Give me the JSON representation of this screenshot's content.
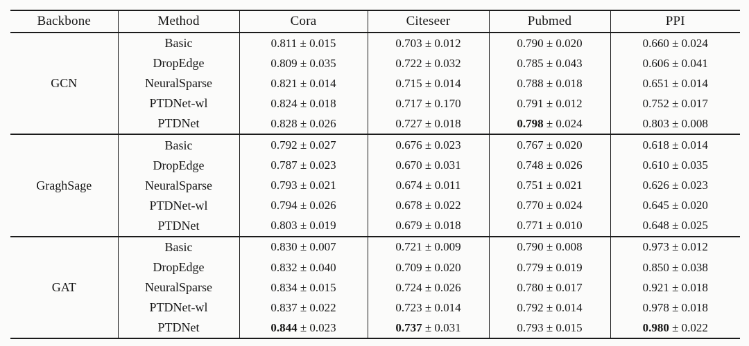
{
  "table": {
    "pm_symbol": "±",
    "columns": [
      "Backbone",
      "Method",
      "Cora",
      "Citeseer",
      "Pubmed",
      "PPI"
    ],
    "groups": [
      {
        "backbone": "GCN",
        "rows": [
          {
            "method": "Basic",
            "cells": [
              {
                "mean": "0.811",
                "std": "0.015",
                "bold": false
              },
              {
                "mean": "0.703",
                "std": "0.012",
                "bold": false
              },
              {
                "mean": "0.790",
                "std": "0.020",
                "bold": false
              },
              {
                "mean": "0.660",
                "std": "0.024",
                "bold": false
              }
            ]
          },
          {
            "method": "DropEdge",
            "cells": [
              {
                "mean": "0.809",
                "std": "0.035",
                "bold": false
              },
              {
                "mean": "0.722",
                "std": "0.032",
                "bold": false
              },
              {
                "mean": "0.785",
                "std": "0.043",
                "bold": false
              },
              {
                "mean": "0.606",
                "std": "0.041",
                "bold": false
              }
            ]
          },
          {
            "method": "NeuralSparse",
            "cells": [
              {
                "mean": "0.821",
                "std": "0.014",
                "bold": false
              },
              {
                "mean": "0.715",
                "std": "0.014",
                "bold": false
              },
              {
                "mean": "0.788",
                "std": "0.018",
                "bold": false
              },
              {
                "mean": "0.651",
                "std": "0.014",
                "bold": false
              }
            ]
          },
          {
            "method": "PTDNet-wl",
            "cells": [
              {
                "mean": "0.824",
                "std": "0.018",
                "bold": false
              },
              {
                "mean": "0.717",
                "std": "0.170",
                "bold": false
              },
              {
                "mean": "0.791",
                "std": "0.012",
                "bold": false
              },
              {
                "mean": "0.752",
                "std": "0.017",
                "bold": false
              }
            ]
          },
          {
            "method": "PTDNet",
            "cells": [
              {
                "mean": "0.828",
                "std": "0.026",
                "bold": false
              },
              {
                "mean": "0.727",
                "std": "0.018",
                "bold": false
              },
              {
                "mean": "0.798",
                "std": "0.024",
                "bold": true
              },
              {
                "mean": "0.803",
                "std": "0.008",
                "bold": false
              }
            ]
          }
        ]
      },
      {
        "backbone": "GraghSage",
        "rows": [
          {
            "method": "Basic",
            "cells": [
              {
                "mean": "0.792",
                "std": "0.027",
                "bold": false
              },
              {
                "mean": "0.676",
                "std": "0.023",
                "bold": false
              },
              {
                "mean": "0.767",
                "std": "0.020",
                "bold": false
              },
              {
                "mean": "0.618",
                "std": "0.014",
                "bold": false
              }
            ]
          },
          {
            "method": "DropEdge",
            "cells": [
              {
                "mean": "0.787",
                "std": "0.023",
                "bold": false
              },
              {
                "mean": "0.670",
                "std": "0.031",
                "bold": false
              },
              {
                "mean": "0.748",
                "std": "0.026",
                "bold": false
              },
              {
                "mean": "0.610",
                "std": "0.035",
                "bold": false
              }
            ]
          },
          {
            "method": "NeuralSparse",
            "cells": [
              {
                "mean": "0.793",
                "std": "0.021",
                "bold": false
              },
              {
                "mean": "0.674",
                "std": "0.011",
                "bold": false
              },
              {
                "mean": "0.751",
                "std": "0.021",
                "bold": false
              },
              {
                "mean": "0.626",
                "std": "0.023",
                "bold": false
              }
            ]
          },
          {
            "method": "PTDNet-wl",
            "cells": [
              {
                "mean": "0.794",
                "std": "0.026",
                "bold": false
              },
              {
                "mean": "0.678",
                "std": "0.022",
                "bold": false
              },
              {
                "mean": "0.770",
                "std": "0.024",
                "bold": false
              },
              {
                "mean": "0.645",
                "std": "0.020",
                "bold": false
              }
            ]
          },
          {
            "method": "PTDNet",
            "cells": [
              {
                "mean": "0.803",
                "std": "0.019",
                "bold": false
              },
              {
                "mean": "0.679",
                "std": "0.018",
                "bold": false
              },
              {
                "mean": "0.771",
                "std": "0.010",
                "bold": false
              },
              {
                "mean": "0.648",
                "std": "0.025",
                "bold": false
              }
            ]
          }
        ]
      },
      {
        "backbone": "GAT",
        "rows": [
          {
            "method": "Basic",
            "cells": [
              {
                "mean": "0.830",
                "std": "0.007",
                "bold": false
              },
              {
                "mean": "0.721",
                "std": "0.009",
                "bold": false
              },
              {
                "mean": "0.790",
                "std": "0.008",
                "bold": false
              },
              {
                "mean": "0.973",
                "std": "0.012",
                "bold": false
              }
            ]
          },
          {
            "method": "DropEdge",
            "cells": [
              {
                "mean": "0.832",
                "std": "0.040",
                "bold": false
              },
              {
                "mean": "0.709",
                "std": "0.020",
                "bold": false
              },
              {
                "mean": "0.779",
                "std": "0.019",
                "bold": false
              },
              {
                "mean": "0.850",
                "std": "0.038",
                "bold": false
              }
            ]
          },
          {
            "method": "NeuralSparse",
            "cells": [
              {
                "mean": "0.834",
                "std": "0.015",
                "bold": false
              },
              {
                "mean": "0.724",
                "std": "0.026",
                "bold": false
              },
              {
                "mean": "0.780",
                "std": "0.017",
                "bold": false
              },
              {
                "mean": "0.921",
                "std": "0.018",
                "bold": false
              }
            ]
          },
          {
            "method": "PTDNet-wl",
            "cells": [
              {
                "mean": "0.837",
                "std": "0.022",
                "bold": false
              },
              {
                "mean": "0.723",
                "std": "0.014",
                "bold": false
              },
              {
                "mean": "0.792",
                "std": "0.014",
                "bold": false
              },
              {
                "mean": "0.978",
                "std": "0.018",
                "bold": false
              }
            ]
          },
          {
            "method": "PTDNet",
            "cells": [
              {
                "mean": "0.844",
                "std": "0.023",
                "bold": true
              },
              {
                "mean": "0.737",
                "std": "0.031",
                "bold": true
              },
              {
                "mean": "0.793",
                "std": "0.015",
                "bold": false
              },
              {
                "mean": "0.980",
                "std": "0.022",
                "bold": true
              }
            ]
          }
        ]
      }
    ]
  }
}
